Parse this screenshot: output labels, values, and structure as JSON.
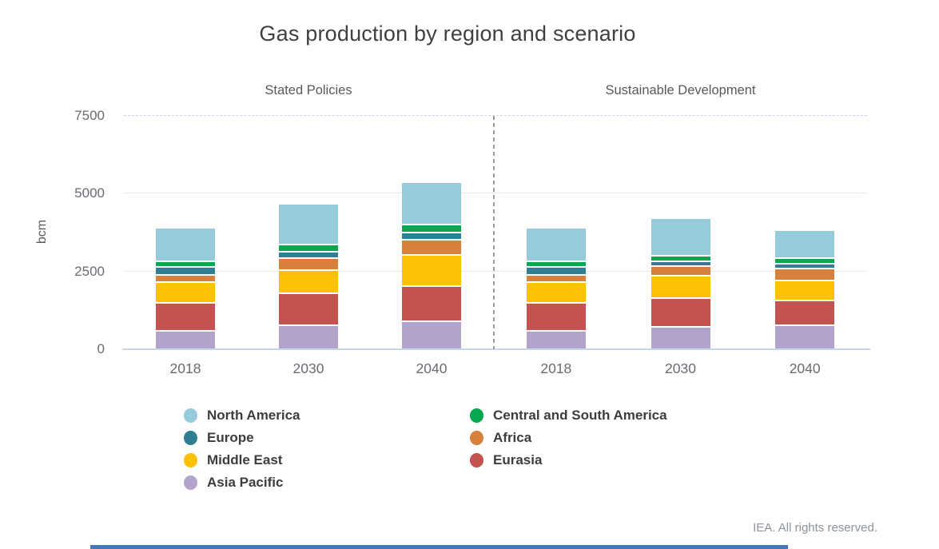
{
  "title": "Gas production by region and scenario",
  "footer": "IEA. All rights reserved.",
  "chart_data": {
    "type": "bar",
    "stacked": true,
    "title": "Gas production by region and scenario",
    "ylabel": "bcm",
    "unit": "bcm",
    "ylim": [
      0,
      7500
    ],
    "yticks": [
      0,
      2500,
      5000,
      7500
    ],
    "grid": "horizontal",
    "legend_position": "bottom",
    "categories": [
      "2018",
      "2030",
      "2040"
    ],
    "regions": [
      {
        "name": "North America",
        "color": "#96cbdc"
      },
      {
        "name": "Central and South America",
        "color": "#04a84e"
      },
      {
        "name": "Europe",
        "color": "#2f7e93"
      },
      {
        "name": "Africa",
        "color": "#d6803c"
      },
      {
        "name": "Middle East",
        "color": "#fcc103"
      },
      {
        "name": "Eurasia",
        "color": "#c4524f"
      },
      {
        "name": "Asia Pacific",
        "color": "#b2a3cd"
      }
    ],
    "stack_order_bottom_to_top": [
      "Asia Pacific",
      "Eurasia",
      "Middle East",
      "Africa",
      "Europe",
      "Central and South America",
      "North America"
    ],
    "panels": [
      {
        "label": "Stated Policies",
        "bars": [
          {
            "year": "2018",
            "values": {
              "North America": 1080,
              "Central and South America": 185,
              "Europe": 255,
              "Africa": 240,
              "Middle East": 660,
              "Eurasia": 905,
              "Asia Pacific": 560
            }
          },
          {
            "year": "2030",
            "values": {
              "North America": 1320,
              "Central and South America": 215,
              "Europe": 215,
              "Africa": 380,
              "Middle East": 760,
              "Eurasia": 1015,
              "Asia Pacific": 750
            }
          },
          {
            "year": "2040",
            "values": {
              "North America": 1355,
              "Central and South America": 265,
              "Europe": 215,
              "Africa": 490,
              "Middle East": 1010,
              "Eurasia": 1145,
              "Asia Pacific": 860
            }
          }
        ]
      },
      {
        "label": "Sustainable Development",
        "bars": [
          {
            "year": "2018",
            "values": {
              "North America": 1080,
              "Central and South America": 185,
              "Europe": 255,
              "Africa": 240,
              "Middle East": 660,
              "Eurasia": 905,
              "Asia Pacific": 560
            }
          },
          {
            "year": "2030",
            "values": {
              "North America": 1205,
              "Central and South America": 190,
              "Europe": 145,
              "Africa": 330,
              "Middle East": 715,
              "Eurasia": 905,
              "Asia Pacific": 705
            }
          },
          {
            "year": "2040",
            "values": {
              "North America": 890,
              "Central and South America": 190,
              "Europe": 155,
              "Africa": 380,
              "Middle East": 655,
              "Eurasia": 795,
              "Asia Pacific": 735
            }
          }
        ]
      }
    ]
  },
  "legend": {
    "columns": [
      [
        "North America",
        "Europe",
        "Middle East",
        "Asia Pacific"
      ],
      [
        "Central and South America",
        "Africa",
        "Eurasia"
      ]
    ]
  }
}
